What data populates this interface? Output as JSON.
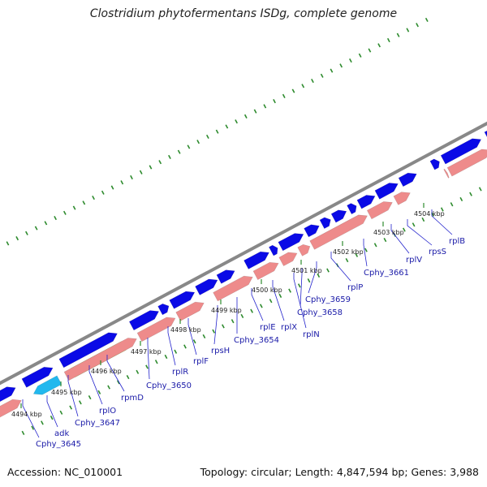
{
  "title": "Clostridium phytofermentans ISDg, complete genome",
  "footer": {
    "accession": "Accession: NC_010001",
    "stats": "Topology: circular; Length: 4,847,594 bp; Genes: 3,988"
  },
  "colors": {
    "backbone": "#888888",
    "forward_gene": "#0a0ae6",
    "reverse_gene": "#ee8b8b",
    "highlight_cyan": "#22b8ee",
    "highlight_lime": "#a8ee22",
    "tick": "#2e8b2e",
    "gene_label": "#1a1aa8",
    "leader": "#2222cc"
  },
  "kbp_labels": [
    "4494 kbp",
    "4495 kbp",
    "4496 kbp",
    "4497 kbp",
    "4498 kbp",
    "4499 kbp",
    "4500 kbp",
    "4501 kbp",
    "4502 kbp",
    "4503 kbp",
    "4504 kbp"
  ],
  "gene_labels": [
    "Cphy_3645",
    "adk",
    "Cphy_3647",
    "rplO",
    "rpmD",
    "Cphy_3650",
    "rplR",
    "rplF",
    "rpsH",
    "Cphy_3654",
    "rplE",
    "rplX",
    "rplN",
    "Cphy_3658",
    "Cphy_3659",
    "rplP",
    "Cphy_3661",
    "rplV",
    "rpsS",
    "rplB"
  ]
}
